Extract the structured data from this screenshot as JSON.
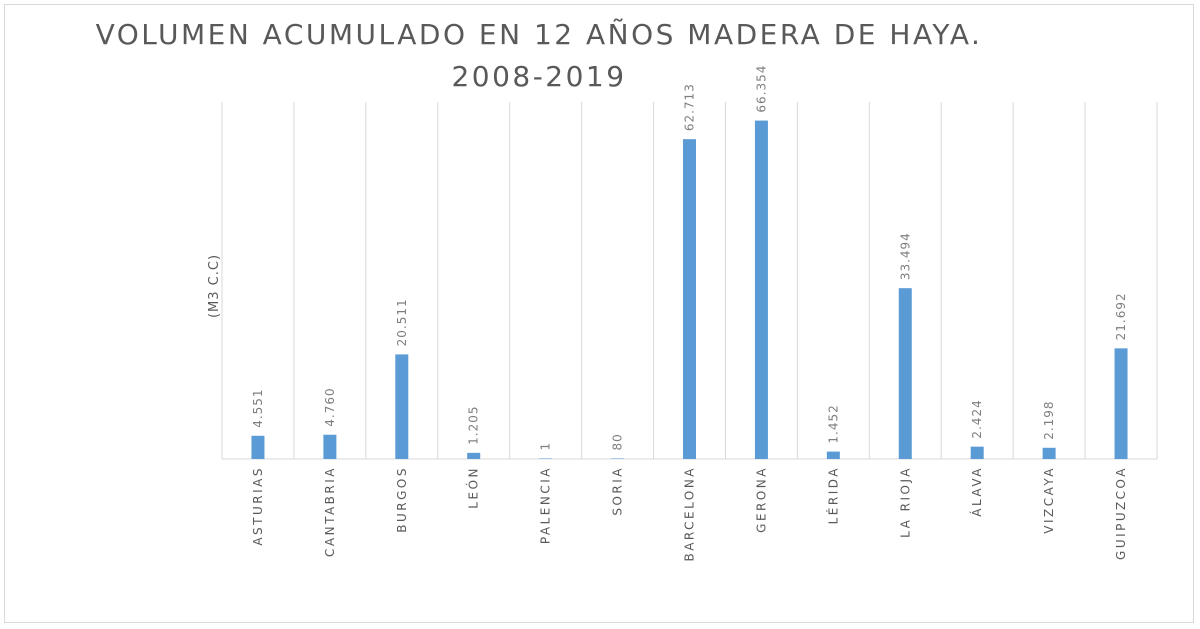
{
  "chart_data": {
    "type": "bar",
    "title_line1": "VOLUMEN ACUMULADO EN 12 AÑOS MADERA DE HAYA.",
    "title_line2": "2008-2019",
    "ylabel": "(M3 C.C)",
    "categories": [
      "ASTURIAS",
      "CANTABRIA",
      "BURGOS",
      "LEÓN",
      "PALENCIA",
      "SORIA",
      "BARCELONA",
      "GERONA",
      "LÉRIDA",
      "LA RIOJA",
      "ÁLAVA",
      "VIZCAYA",
      "GUIPUZCOA"
    ],
    "values": [
      4551,
      4760,
      20511,
      1205,
      1,
      80,
      62713,
      66354,
      1452,
      33494,
      2424,
      2198,
      21692
    ],
    "data_labels": [
      "4.551",
      "4.760",
      "20.511",
      "1.205",
      "1",
      "80",
      "62.713",
      "66.354",
      "1.452",
      "33.494",
      "2.424",
      "2.198",
      "21.692"
    ],
    "ylim": [
      0,
      70000
    ],
    "grid": "vertical category separators",
    "bar_color": "#5b9bd5"
  }
}
